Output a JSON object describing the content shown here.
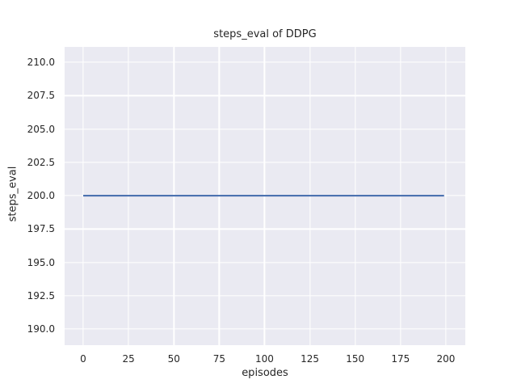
{
  "chart_data": {
    "type": "line",
    "title": "steps_eval of DDPG",
    "xlabel": "episodes",
    "ylabel": "steps_eval",
    "x_ticks": [
      0,
      25,
      50,
      75,
      100,
      125,
      150,
      175,
      200
    ],
    "y_ticks": [
      190.0,
      192.5,
      195.0,
      197.5,
      200.0,
      202.5,
      205.0,
      207.5,
      210.0
    ],
    "y_tick_decimals": 1,
    "xlim": [
      -10.25,
      210.7
    ],
    "ylim": [
      188.8,
      211.15
    ],
    "grid": true,
    "legend_position": "none",
    "series": [
      {
        "name": "ddpg",
        "x": [
          0,
          199
        ],
        "y": [
          200,
          200
        ],
        "color": "#4c72b0"
      }
    ],
    "style": {
      "figure_background": "#ffffff",
      "plot_background": "#eaeaf2",
      "grid_color": "#ffffff",
      "text_color": "#262626",
      "line_width": 2.2
    }
  }
}
